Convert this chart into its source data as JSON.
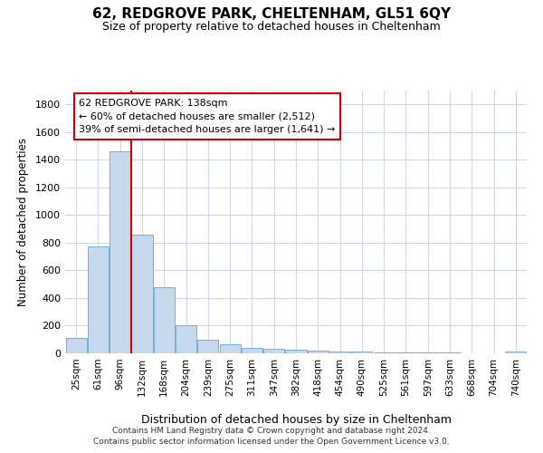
{
  "title": "62, REDGROVE PARK, CHELTENHAM, GL51 6QY",
  "subtitle": "Size of property relative to detached houses in Cheltenham",
  "xlabel": "Distribution of detached houses by size in Cheltenham",
  "ylabel": "Number of detached properties",
  "footer_line1": "Contains HM Land Registry data © Crown copyright and database right 2024.",
  "footer_line2": "Contains public sector information licensed under the Open Government Licence v3.0.",
  "categories": [
    "25sqm",
    "61sqm",
    "96sqm",
    "132sqm",
    "168sqm",
    "204sqm",
    "239sqm",
    "275sqm",
    "311sqm",
    "347sqm",
    "382sqm",
    "418sqm",
    "454sqm",
    "490sqm",
    "525sqm",
    "561sqm",
    "597sqm",
    "633sqm",
    "668sqm",
    "704sqm",
    "740sqm"
  ],
  "values": [
    110,
    770,
    1460,
    860,
    480,
    200,
    100,
    65,
    40,
    30,
    25,
    20,
    15,
    10,
    8,
    5,
    5,
    4,
    3,
    3,
    10
  ],
  "bar_color": "#c5d8ee",
  "bar_edge_color": "#7aadd4",
  "vline_color": "#cc0000",
  "annotation_box_text": "62 REDGROVE PARK: 138sqm\n← 60% of detached houses are smaller (2,512)\n39% of semi-detached houses are larger (1,641) →",
  "ylim": [
    0,
    1900
  ],
  "yticks": [
    0,
    200,
    400,
    600,
    800,
    1000,
    1200,
    1400,
    1600,
    1800
  ],
  "background_color": "#ffffff",
  "grid_color": "#d0d8e8"
}
